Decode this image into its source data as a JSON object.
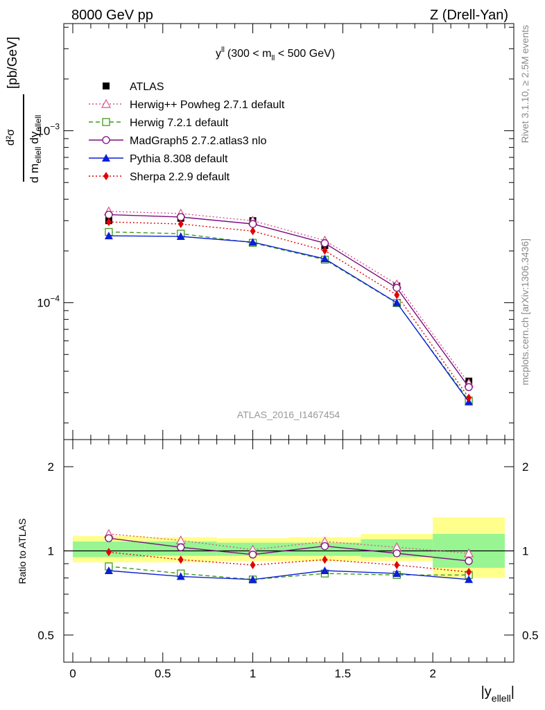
{
  "header": {
    "left": "8000 GeV pp",
    "right": "Z (Drell-Yan)"
  },
  "side_labels": {
    "rivet": "Rivet 3.1.10, ≥ 2.5M events",
    "mcplots": "mcplots.cern.ch [arXiv:1306.3436]"
  },
  "chart_data": [
    {
      "type": "line",
      "title": "yll (300 < mll < 500 GeV)",
      "title_parts": {
        "main": "y",
        "sup": "ll",
        "pre": "(300 < m",
        "sub": "ll",
        "post": " < 500 GeV)"
      },
      "ylabel": "d²σ / d m_ellell dy_ellell [pb/GeV]",
      "ylabel_parts": {
        "num": "d²σ",
        "den_a": "d m",
        "den_a_sub": "ellell",
        "den_b": "dy",
        "den_b_sub": "ellell",
        "unit": "[pb/GeV]"
      },
      "yscale": "log",
      "ylim": [
        1.6e-05,
        0.0042
      ],
      "xlim": [
        -0.05,
        2.45
      ],
      "yticks": [
        {
          "value": 0.0001,
          "base": "10",
          "exp": "−4"
        },
        {
          "value": 0.001,
          "base": "10",
          "exp": "−3"
        }
      ],
      "watermark": "ATLAS_2016_I1467454",
      "legend_position": "top-left",
      "x": [
        0.2,
        0.6,
        1.0,
        1.4,
        1.8,
        2.2
      ],
      "series": [
        {
          "name": "ATLAS",
          "color": "#000000",
          "marker": "square",
          "style": "none",
          "values": [
            0.0003,
            0.00031,
            0.0003,
            0.000215,
            0.000125,
            3.5e-05
          ]
        },
        {
          "name": "Herwig++ Powheg 2.7.1 default",
          "color": "#d9548c",
          "marker": "triangle-open",
          "style": "dotted",
          "values": [
            0.00034,
            0.00033,
            0.0003,
            0.00023,
            0.000128,
            3.4e-05
          ]
        },
        {
          "name": "Herwig 7.2.1 default",
          "color": "#3f9a1a",
          "marker": "square-open",
          "style": "dashed",
          "values": [
            0.000258,
            0.000252,
            0.000223,
            0.000178,
            9.95e-05,
            2.7e-05
          ]
        },
        {
          "name": "MadGraph5 2.7.2.atlas3 nlo",
          "color": "#7b0f7f",
          "marker": "circle-open",
          "style": "solid",
          "values": [
            0.000325,
            0.000315,
            0.000287,
            0.000222,
            0.000122,
            3.23e-05
          ]
        },
        {
          "name": "Pythia 8.308 default",
          "color": "#0b1fd6",
          "marker": "triangle",
          "style": "solid",
          "values": [
            0.000245,
            0.000243,
            0.000225,
            0.00018,
            0.0001,
            2.65e-05
          ]
        },
        {
          "name": "Sherpa 2.2.9 default",
          "color": "#e00000",
          "marker": "diamond",
          "style": "dotted",
          "values": [
            0.000295,
            0.000287,
            0.000261,
            0.000201,
            0.000111,
            2.8e-05
          ]
        }
      ]
    },
    {
      "type": "line",
      "ylabel": "Ratio to ATLAS",
      "xlabel": "|y_ellell|",
      "xlabel_parts": {
        "main": "|y",
        "sub": "ellell",
        "post": "|"
      },
      "yscale": "log",
      "ylim": [
        0.4,
        2.5
      ],
      "xlim": [
        -0.05,
        2.45
      ],
      "xticks": [
        "0",
        "0.5",
        "1",
        "1.5",
        "2"
      ],
      "yticks": [
        "0.5",
        "1",
        "2"
      ],
      "bands": {
        "edges": [
          0.0,
          0.4,
          0.8,
          1.2,
          1.6,
          2.0,
          2.4
        ],
        "yellow": [
          [
            0.91,
            1.13
          ],
          [
            0.91,
            1.12
          ],
          [
            0.92,
            1.11
          ],
          [
            0.92,
            1.12
          ],
          [
            0.92,
            1.15
          ],
          [
            0.8,
            1.32
          ]
        ],
        "green": [
          [
            0.95,
            1.08
          ],
          [
            0.96,
            1.08
          ],
          [
            0.96,
            1.07
          ],
          [
            0.96,
            1.07
          ],
          [
            0.95,
            1.1
          ],
          [
            0.87,
            1.15
          ]
        ]
      },
      "x": [
        0.2,
        0.6,
        1.0,
        1.4,
        1.8,
        2.2
      ],
      "series": [
        {
          "name": "Herwig++ Powheg 2.7.1 default",
          "color": "#d9548c",
          "marker": "triangle-open",
          "style": "dotted",
          "values": [
            1.15,
            1.09,
            1.01,
            1.08,
            1.03,
            0.98
          ]
        },
        {
          "name": "Herwig 7.2.1 default",
          "color": "#3f9a1a",
          "marker": "square-open",
          "style": "dashed",
          "values": [
            0.88,
            0.83,
            0.79,
            0.83,
            0.82,
            0.82
          ]
        },
        {
          "name": "MadGraph5 2.7.2.atlas3 nlo",
          "color": "#7b0f7f",
          "marker": "circle-open",
          "style": "solid",
          "values": [
            1.11,
            1.03,
            0.97,
            1.04,
            0.98,
            0.92
          ]
        },
        {
          "name": "Pythia 8.308 default",
          "color": "#0b1fd6",
          "marker": "triangle",
          "style": "solid",
          "values": [
            0.85,
            0.81,
            0.79,
            0.85,
            0.83,
            0.79
          ]
        },
        {
          "name": "Sherpa 2.2.9 default",
          "color": "#e00000",
          "marker": "diamond",
          "style": "dotted",
          "values": [
            0.99,
            0.93,
            0.89,
            0.93,
            0.89,
            0.84
          ]
        }
      ]
    }
  ]
}
